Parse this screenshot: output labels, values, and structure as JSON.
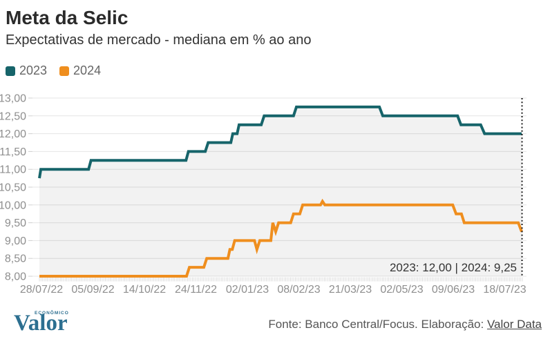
{
  "header": {
    "title": "Meta da Selic",
    "subtitle": "Expectativas de mercado - mediana em % ao ano"
  },
  "legend": [
    {
      "label": "2023",
      "color": "#16646a"
    },
    {
      "label": "2024",
      "color": "#ef8e1e"
    }
  ],
  "chart_data": {
    "type": "line",
    "title": "Meta da Selic",
    "subtitle": "Expectativas de mercado - mediana em % ao ano",
    "unit": "% ao ano",
    "ylim": [
      8.0,
      13.0
    ],
    "grid": true,
    "legend_position": "top-left",
    "background_area": "under-2023-series",
    "y_ticks": [
      {
        "label": "13,00",
        "value": 13.0
      },
      {
        "label": "12,50",
        "value": 12.5
      },
      {
        "label": "12,00",
        "value": 12.0
      },
      {
        "label": "11,50",
        "value": 11.5
      },
      {
        "label": "11,00",
        "value": 11.0
      },
      {
        "label": "10,50",
        "value": 10.5
      },
      {
        "label": "10,00",
        "value": 10.0
      },
      {
        "label": "9,50",
        "value": 9.5
      },
      {
        "label": "9,00",
        "value": 9.0
      },
      {
        "label": "8,50",
        "value": 8.5
      },
      {
        "label": "8,00",
        "value": 8.0
      }
    ],
    "x_tick_labels": [
      "28/07/22",
      "05/09/22",
      "14/10/22",
      "24/11/22",
      "02/01/23",
      "08/02/23",
      "21/03/23",
      "02/05/23",
      "09/06/23",
      "18/07/23"
    ],
    "series": [
      {
        "name": "2023",
        "color": "#16646a",
        "final_value": 12.0,
        "points": [
          [
            0.0,
            10.75
          ],
          [
            0.003,
            11.0
          ],
          [
            0.102,
            11.0
          ],
          [
            0.107,
            11.25
          ],
          [
            0.304,
            11.25
          ],
          [
            0.309,
            11.5
          ],
          [
            0.344,
            11.5
          ],
          [
            0.35,
            11.75
          ],
          [
            0.397,
            11.75
          ],
          [
            0.401,
            12.0
          ],
          [
            0.41,
            12.0
          ],
          [
            0.414,
            12.25
          ],
          [
            0.46,
            12.25
          ],
          [
            0.466,
            12.5
          ],
          [
            0.527,
            12.5
          ],
          [
            0.533,
            12.75
          ],
          [
            0.705,
            12.75
          ],
          [
            0.712,
            12.5
          ],
          [
            0.867,
            12.5
          ],
          [
            0.874,
            12.25
          ],
          [
            0.915,
            12.25
          ],
          [
            0.923,
            12.0
          ],
          [
            1.0,
            12.0
          ]
        ]
      },
      {
        "name": "2024",
        "color": "#ef8e1e",
        "final_value": 9.25,
        "points": [
          [
            0.0,
            8.0
          ],
          [
            0.305,
            8.0
          ],
          [
            0.311,
            8.25
          ],
          [
            0.341,
            8.25
          ],
          [
            0.347,
            8.5
          ],
          [
            0.391,
            8.5
          ],
          [
            0.395,
            8.75
          ],
          [
            0.4,
            8.75
          ],
          [
            0.405,
            9.0
          ],
          [
            0.446,
            9.0
          ],
          [
            0.451,
            8.75
          ],
          [
            0.457,
            9.0
          ],
          [
            0.48,
            9.0
          ],
          [
            0.484,
            9.5
          ],
          [
            0.49,
            9.25
          ],
          [
            0.496,
            9.5
          ],
          [
            0.521,
            9.5
          ],
          [
            0.527,
            9.75
          ],
          [
            0.54,
            9.75
          ],
          [
            0.546,
            10.0
          ],
          [
            0.583,
            10.0
          ],
          [
            0.587,
            10.1
          ],
          [
            0.592,
            10.0
          ],
          [
            0.857,
            10.0
          ],
          [
            0.864,
            9.75
          ],
          [
            0.875,
            9.75
          ],
          [
            0.881,
            9.5
          ],
          [
            0.993,
            9.5
          ],
          [
            1.0,
            9.25
          ]
        ]
      }
    ],
    "annotation": {
      "label": "2023: 12,00 | 2024: 9,25"
    },
    "end_marker": {
      "type": "dotted-vertical-line",
      "at_x_fraction": 1.0
    }
  },
  "footer": {
    "logo": "Valor",
    "logo_superscript": "ECONÔMICO",
    "source_prefix": "Fonte: Banco Central/Focus. Elaboração: ",
    "source_link": "Valor Data"
  }
}
